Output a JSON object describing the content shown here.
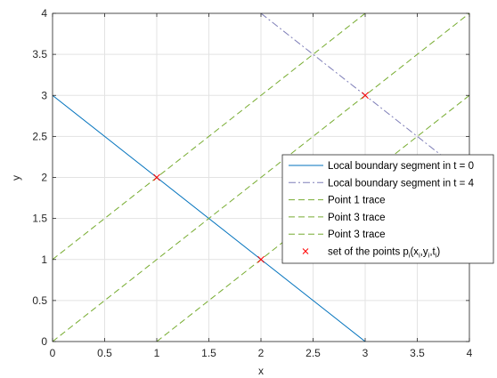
{
  "chart_data": {
    "type": "line",
    "xlabel": "x",
    "ylabel": "y",
    "xlim": [
      0,
      4
    ],
    "ylim": [
      0,
      4
    ],
    "xticks": [
      0,
      0.5,
      1,
      1.5,
      2,
      2.5,
      3,
      3.5,
      4
    ],
    "yticks": [
      0,
      0.5,
      1,
      1.5,
      2,
      2.5,
      3,
      3.5,
      4
    ],
    "xtick_labels": [
      "0",
      "0.5",
      "1",
      "1.5",
      "2",
      "2.5",
      "3",
      "3.5",
      "4"
    ],
    "ytick_labels": [
      "0",
      "0.5",
      "1",
      "1.5",
      "2",
      "2.5",
      "3",
      "3.5",
      "4"
    ],
    "grid": true,
    "legend_position": "right",
    "series": [
      {
        "name": "Local boundary segment in t = 0",
        "style": "solid",
        "color": "#0072BD",
        "x": [
          0,
          3
        ],
        "y": [
          3,
          0
        ]
      },
      {
        "name": "Local boundary segment in t = 4",
        "style": "dashdot",
        "color": "#7E7EB8",
        "x": [
          2,
          4
        ],
        "y": [
          4,
          2
        ]
      },
      {
        "name": "Point 1 trace",
        "style": "dashed",
        "color": "#77AC30",
        "x": [
          0,
          3
        ],
        "y": [
          1,
          4
        ]
      },
      {
        "name": "Point 3 trace",
        "style": "dashed",
        "color": "#77AC30",
        "x": [
          0,
          4
        ],
        "y": [
          0,
          4
        ]
      },
      {
        "name": "Point 3 trace",
        "style": "dashed",
        "color": "#77AC30",
        "x": [
          1,
          4
        ],
        "y": [
          0,
          3
        ]
      }
    ],
    "points": {
      "name": "set of the points p",
      "name_suffix": [
        "i",
        "(x",
        "i",
        ",y",
        "i",
        ",t",
        "i",
        ")"
      ],
      "marker": "x",
      "color": "#FF0000",
      "x": [
        1,
        2,
        3
      ],
      "y": [
        2,
        1,
        3
      ]
    }
  }
}
